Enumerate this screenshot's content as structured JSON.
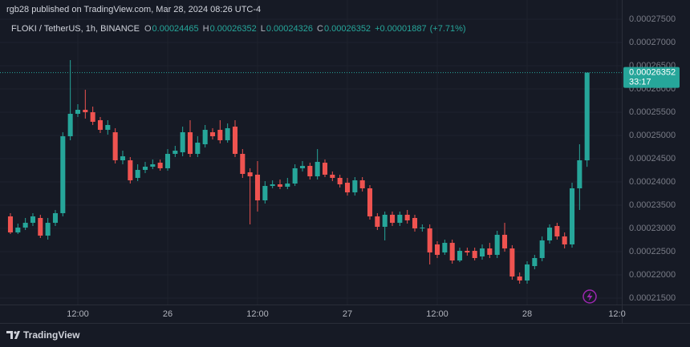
{
  "chart_data": {
    "type": "candlestick",
    "title": "rgb28 published on TradingView.com, Mar 28, 2024 08:26 UTC-4",
    "legend": {
      "symbol": "FLOKI / TetherUS, 1h, BINANCE",
      "items": [
        {
          "key": "O",
          "value": 0.00024465
        },
        {
          "key": "H",
          "value": 0.00026352
        },
        {
          "key": "L",
          "value": 0.00024326
        },
        {
          "key": "C",
          "value": 0.00026352
        }
      ],
      "change": "+0.00001887",
      "change_pct": "(+7.71%)"
    },
    "open": [
      0.00023259,
      0.00022914,
      0.00023018,
      0.00023121,
      0.00023225,
      0.00022845,
      0.00023121,
      0.00023328,
      0.00024983,
      0.00025466,
      0.00025552,
      0.000255,
      0.00025328,
      0.00025121,
      0.00025069,
      0.00024466,
      0.00024466,
      0.00024087,
      0.00024259,
      0.00024328,
      0.00024414,
      0.00024294,
      0.00024604,
      0.00024638,
      0.00025069,
      0.00024604,
      0.00024811,
      0.00025069,
      0.00025121,
      0.00024897,
      0.0002519,
      0.00024604,
      0.00024207,
      0.00024156,
      0.00023604,
      0.00023914,
      0.00023949,
      0.00023897,
      0.00023966,
      0.00024294,
      0.00024345,
      0.00024121,
      0.00024414,
      0.00024156,
      0.00024087,
      0.00023983,
      0.00023776,
      0.00024035,
      0.00023863,
      0.00023259,
      0.00023035,
      0.00023294,
      0.00023121,
      0.00023294,
      0.00023225,
      0.00023001,
      0.00023001,
      0.00022656,
      0.00022483,
      0.0002269,
      0.00022311,
      0.00022518,
      0.00022518,
      0.00022397,
      0.0002257,
      0.00022432,
      0.00022863,
      0.0002257,
      0.00021966,
      0.0002188,
      0.0002219,
      0.00022363,
      0.00022742,
      0.00023052,
      0.00022828,
      0.00022656,
      0.00023863,
      0.00024465
    ],
    "high": [
      0.00023328,
      0.00023104,
      0.00023225,
      0.00023328,
      0.00023294,
      0.00023225,
      0.00023397,
      0.00025069,
      0.00026621,
      0.00025673,
      0.00025983,
      0.00025621,
      0.00025397,
      0.00025328,
      0.00025156,
      0.00024673,
      0.00024535,
      0.0002438,
      0.00024432,
      0.00024483,
      0.00024483,
      0.00024707,
      0.00024776,
      0.0002519,
      0.00025328,
      0.00024983,
      0.00025225,
      0.00025156,
      0.00025328,
      0.00025259,
      0.00025328,
      0.00024707,
      0.00024294,
      0.00024449,
      0.00024018,
      0.00024035,
      0.00024052,
      0.00024087,
      0.0002438,
      0.00024449,
      0.00024414,
      0.00024707,
      0.00024483,
      0.00024225,
      0.00024156,
      0.00024087,
      0.00024104,
      0.00024104,
      0.00023932,
      0.00023328,
      0.00023363,
      0.00023363,
      0.00023363,
      0.00023397,
      0.00023294,
      0.00023087,
      0.00023087,
      0.00022725,
      0.00022759,
      0.00022759,
      0.00022587,
      0.00022587,
      0.00022587,
      0.00022656,
      0.0002269,
      0.00022949,
      0.00023121,
      0.00022639,
      0.00022052,
      0.00022294,
      0.00022432,
      0.00022828,
      0.00023087,
      0.00023121,
      0.00022914,
      0.00023983,
      0.00024811,
      0.00026352
    ],
    "low": [
      0.0002288,
      0.0002288,
      0.00022966,
      0.00023052,
      0.00022794,
      0.00022759,
      0.00023052,
      0.00023259,
      0.00024897,
      0.00025397,
      0.00025362,
      0.00025225,
      0.00025052,
      0.00025018,
      0.00024397,
      0.0002438,
      0.00023966,
      0.00024018,
      0.0002419,
      0.00024276,
      0.00024242,
      0.00024242,
      0.00024535,
      0.00024552,
      0.00024535,
      0.00024535,
      0.00024742,
      0.00024914,
      0.00024828,
      0.00024845,
      0.00024535,
      0.00024087,
      0.00023087,
      0.00023363,
      0.00023535,
      0.00023863,
      0.00023845,
      0.00023845,
      0.00023914,
      0.00024225,
      0.00024052,
      0.00024052,
      0.00024104,
      0.00024018,
      0.0002388,
      0.00023707,
      0.00023707,
      0.00023794,
      0.0002319,
      0.00022966,
      0.00022742,
      0.00023052,
      0.00023052,
      0.00023104,
      0.00022932,
      0.00022932,
      0.00022225,
      0.00022363,
      0.00022432,
      0.00022242,
      0.00022276,
      0.00022414,
      0.00022311,
      0.00022328,
      0.00022363,
      0.00022363,
      0.00022501,
      0.00021897,
      0.00021811,
      0.00021811,
      0.00022121,
      0.00022294,
      0.00022673,
      0.00022759,
      0.0002257,
      0.00022587,
      0.00023397,
      0.00024326
    ],
    "close": [
      0.00022914,
      0.00023018,
      0.00023121,
      0.00023259,
      0.00022845,
      0.00023121,
      0.00023328,
      0.00024983,
      0.00025466,
      0.00025552,
      0.000255,
      0.00025294,
      0.00025121,
      0.00025225,
      0.00024466,
      0.00024552,
      0.00024035,
      0.00024259,
      0.00024328,
      0.0002438,
      0.00024294,
      0.00024604,
      0.00024673,
      0.00025069,
      0.00024604,
      0.00024845,
      0.00025121,
      0.00024983,
      0.00024897,
      0.00025156,
      0.00024604,
      0.00024173,
      0.00024121,
      0.00023604,
      0.00023914,
      0.00023949,
      0.00023897,
      0.00023966,
      0.00024294,
      0.00024345,
      0.00024121,
      0.00024432,
      0.00024156,
      0.00024087,
      0.00023949,
      0.00023776,
      0.00024035,
      0.00023863,
      0.00023259,
      0.00023035,
      0.00023294,
      0.00023121,
      0.00023294,
      0.00023173,
      0.00023001,
      0.00023018,
      0.00022483,
      0.00022432,
      0.0002269,
      0.00022311,
      0.00022518,
      0.00022483,
      0.00022363,
      0.0002257,
      0.00022432,
      0.00022863,
      0.0002257,
      0.00021966,
      0.0002188,
      0.00022225,
      0.00022363,
      0.00022742,
      0.00023018,
      0.00022828,
      0.00022656,
      0.00023863,
      0.00024466,
      0.00026352
    ],
    "up_color": "#26a69a",
    "down_color": "#ef5350",
    "last_price": 0.00026352,
    "countdown": "33:17",
    "xlim": [
      -1.39,
      81.64
    ],
    "xticks": [
      {
        "value": 9,
        "label": "12:00"
      },
      {
        "value": 21,
        "label": "26"
      },
      {
        "value": 33,
        "label": "12:00"
      },
      {
        "value": 45,
        "label": "27"
      },
      {
        "value": 57,
        "label": "12:00"
      },
      {
        "value": 69,
        "label": "28"
      },
      {
        "value": 81,
        "label": "12:0"
      }
    ],
    "ylim": [
      0.00021363,
      0.00027914
    ],
    "yticks": [
      {
        "value": 0.000275,
        "label": "0.00027500"
      },
      {
        "value": 0.00027,
        "label": "0.00027000"
      },
      {
        "value": 0.000265,
        "label": "0.00026500"
      },
      {
        "value": 0.00026,
        "label": "0.00026000"
      },
      {
        "value": 0.000255,
        "label": "0.00025500"
      },
      {
        "value": 0.00025,
        "label": "0.00025000"
      },
      {
        "value": 0.000245,
        "label": "0.00024500"
      },
      {
        "value": 0.00024,
        "label": "0.00024000"
      },
      {
        "value": 0.000235,
        "label": "0.00023500"
      },
      {
        "value": 0.00023,
        "label": "0.00023000"
      },
      {
        "value": 0.000225,
        "label": "0.00022500"
      },
      {
        "value": 0.00022,
        "label": "0.00022000"
      },
      {
        "value": 0.000215,
        "label": "0.00021500"
      }
    ],
    "grid": true,
    "footer": "TradingView"
  }
}
